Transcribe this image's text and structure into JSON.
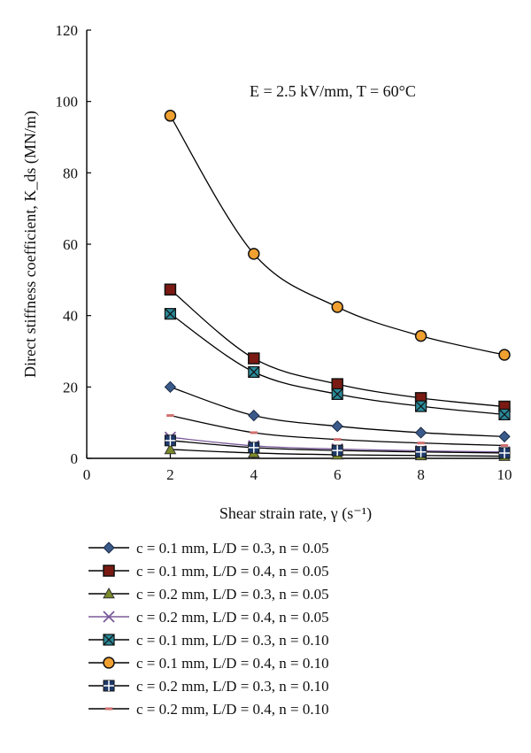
{
  "chart_data": {
    "type": "line",
    "xlabel": "Shear strain rate, γ (s⁻¹)",
    "ylabel": "Direct stiffness coefficient, K_ds (MN/m)",
    "annotation": "E = 2.5 kV/mm, T = 60°C",
    "xlim": [
      0,
      10
    ],
    "ylim": [
      0,
      120
    ],
    "x_ticks": [
      0,
      2,
      4,
      6,
      8,
      10
    ],
    "y_ticks": [
      0,
      20,
      40,
      60,
      80,
      100,
      120
    ],
    "grid": false,
    "legend_position": "bottom",
    "x": [
      2,
      4,
      6,
      8,
      10
    ],
    "series": [
      {
        "name": "c = 0.1 mm, L/D = 0.3, n = 0.05",
        "marker": "diamond",
        "color": "#3a5a8a",
        "values": [
          20,
          12,
          9,
          7.2,
          6.1
        ]
      },
      {
        "name": "c = 0.1 mm, L/D = 0.4, n = 0.05",
        "marker": "square",
        "color": "#7a1a12",
        "values": [
          47.3,
          28,
          20.8,
          16.9,
          14.5
        ]
      },
      {
        "name": "c = 0.2 mm, L/D = 0.3, n = 0.05",
        "marker": "triangle",
        "color": "#7a8a2a",
        "values": [
          2.5,
          1.5,
          1.0,
          0.8,
          0.6
        ]
      },
      {
        "name": "c = 0.2 mm, L/D = 0.4, n = 0.05",
        "marker": "x",
        "color": "#7a5a9a",
        "values": [
          5.9,
          3.5,
          2.6,
          2.1,
          1.8
        ]
      },
      {
        "name": "c = 0.1 mm, L/D = 0.3, n = 0.10",
        "marker": "xbox",
        "color": "#2a8a9a",
        "values": [
          40.5,
          24.2,
          18.0,
          14.6,
          12.3
        ]
      },
      {
        "name": "c = 0.1 mm, L/D = 0.4, n = 0.10",
        "marker": "circle",
        "color": "#f0a030",
        "values": [
          96,
          57.3,
          42.4,
          34.3,
          29
        ]
      },
      {
        "name": "c = 0.2 mm, L/D = 0.3, n = 0.10",
        "marker": "plus",
        "color": "#1e3a6a",
        "values": [
          5.0,
          3.0,
          2.2,
          1.8,
          1.5
        ]
      },
      {
        "name": "c = 0.2 mm, L/D = 0.4, n = 0.10",
        "marker": "dash",
        "color": "#d07070",
        "values": [
          12,
          7.2,
          5.3,
          4.3,
          3.6
        ]
      }
    ]
  }
}
